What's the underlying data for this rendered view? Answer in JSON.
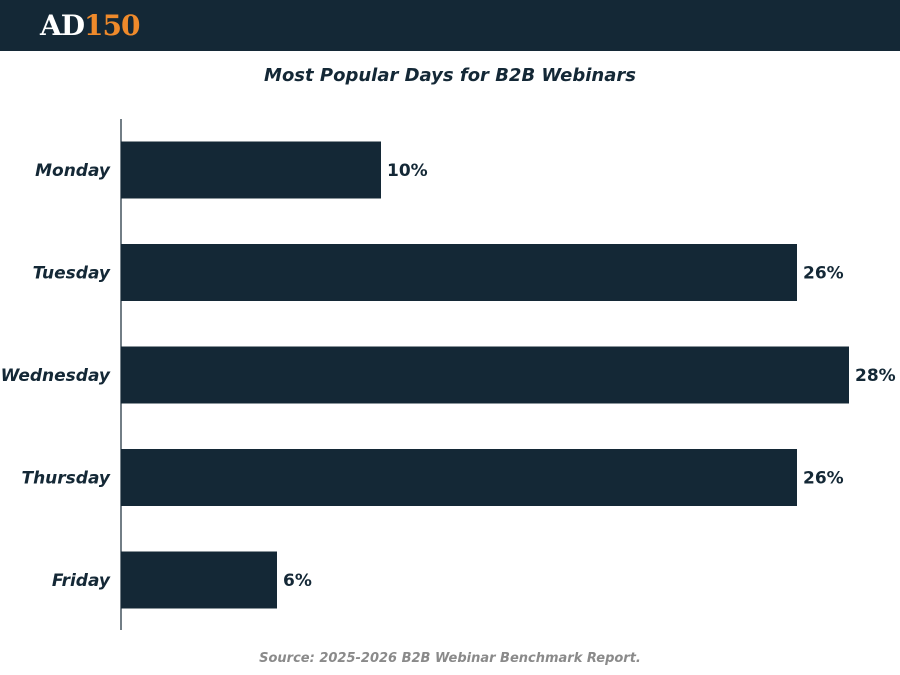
{
  "header": {
    "logo_part1": "AD",
    "logo_part2": "150",
    "logo_accent_color": "#ef8a2b",
    "background_color": "#142836"
  },
  "chart_data": {
    "type": "bar",
    "orientation": "horizontal",
    "title": "Most Popular Days for B2B Webinars",
    "categories": [
      "Monday",
      "Tuesday",
      "Wednesday",
      "Thursday",
      "Friday"
    ],
    "values": [
      10,
      26,
      28,
      26,
      6
    ],
    "value_labels": [
      "10%",
      "26%",
      "28%",
      "26%",
      "6%"
    ],
    "xlim": [
      0,
      28
    ],
    "xlabel": "",
    "ylabel": "",
    "grid": false,
    "bar_color": "#142836"
  },
  "footer": {
    "source": "Source: 2025-2026 B2B Webinar Benchmark Report."
  }
}
